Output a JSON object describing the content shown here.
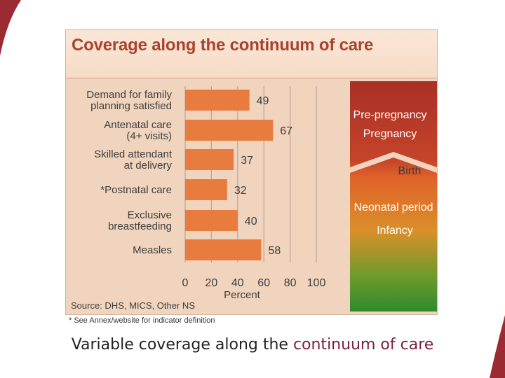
{
  "colors": {
    "bar": "#e87c3e",
    "title": "#a8432e",
    "panel": "#f1d4bd",
    "highlight": "#7a1f3d"
  },
  "chart_data": {
    "type": "bar",
    "orientation": "horizontal",
    "title": "Coverage along the continuum of care",
    "categories": [
      [
        "Demand for family",
        "planning satisfied"
      ],
      [
        "Antenatal care",
        "(4+ visits)"
      ],
      [
        "Skilled attendant",
        "at delivery"
      ],
      [
        "*Postnatal care"
      ],
      [
        "Exclusive",
        "breastfeeding"
      ],
      [
        "Measles"
      ]
    ],
    "values": [
      49,
      67,
      37,
      32,
      40,
      58
    ],
    "xlabel": "Percent",
    "xticks": [
      0,
      20,
      40,
      60,
      80,
      100
    ],
    "xlim": [
      0,
      100
    ],
    "grid": true,
    "source": "Source: DHS, MICS, Other NS",
    "stages": [
      "Pre-pregnancy",
      "Pregnancy",
      "Birth",
      "Neonatal period",
      "Infancy"
    ]
  },
  "footnote": "* See Annex/website for indicator definition",
  "caption": {
    "prefix": "Variable coverage along the ",
    "highlight": "continuum of care"
  }
}
